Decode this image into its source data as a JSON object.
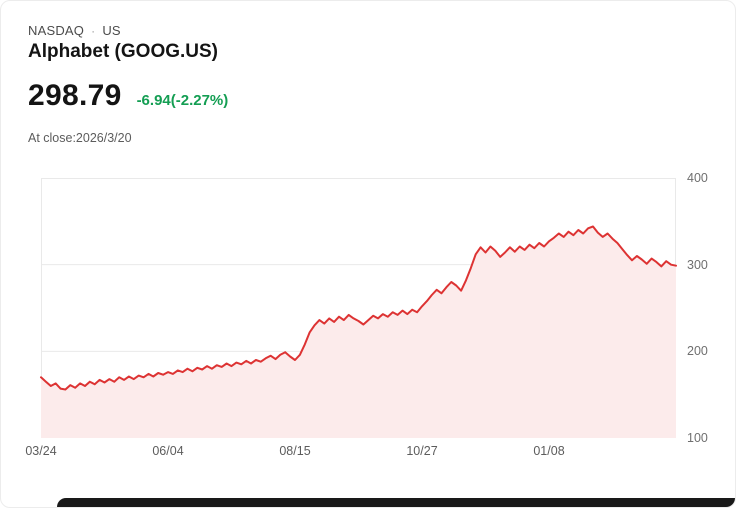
{
  "header": {
    "exchange": "NASDAQ",
    "separator": "·",
    "region": "US",
    "name": "Alphabet (GOOG.US)",
    "price": "298.79",
    "change": "-6.94(-2.27%)",
    "close_note": "At close:2026/3/20"
  },
  "colors": {
    "line": "#dd3333",
    "area": "#fcebeb",
    "change_green": "#149e53",
    "grid": "#e9e9e9",
    "axis_text": "#6f6f6f"
  },
  "chart_data": {
    "type": "line",
    "title": "Alphabet (GOOG.US) share price",
    "xlabel": "",
    "ylabel": "",
    "ylim": [
      100,
      400
    ],
    "y_ticks": [
      400,
      300,
      200,
      100
    ],
    "x_tick_labels": [
      "03/24",
      "06/04",
      "08/15",
      "10/27",
      "01/08"
    ],
    "x_tick_indices": [
      0,
      26,
      52,
      78,
      104
    ],
    "grid": true,
    "legend": false,
    "values": [
      170,
      165,
      160,
      163,
      157,
      156,
      161,
      158,
      163,
      160,
      165,
      162,
      167,
      164,
      168,
      165,
      170,
      167,
      171,
      168,
      172,
      170,
      174,
      171,
      175,
      173,
      176,
      174,
      178,
      176,
      180,
      177,
      181,
      179,
      183,
      180,
      184,
      182,
      186,
      183,
      187,
      185,
      189,
      186,
      190,
      188,
      192,
      195,
      191,
      196,
      199,
      194,
      190,
      196,
      208,
      222,
      230,
      236,
      232,
      238,
      234,
      240,
      236,
      242,
      238,
      235,
      231,
      236,
      241,
      238,
      243,
      240,
      245,
      242,
      247,
      243,
      248,
      245,
      252,
      258,
      265,
      271,
      267,
      274,
      280,
      276,
      270,
      282,
      296,
      312,
      320,
      314,
      321,
      316,
      309,
      314,
      320,
      315,
      321,
      317,
      323,
      319,
      325,
      321,
      327,
      331,
      336,
      332,
      338,
      334,
      340,
      336,
      342,
      344,
      337,
      332,
      336,
      330,
      325,
      318,
      311,
      305,
      310,
      306,
      301,
      307,
      303,
      298,
      304,
      300,
      298.79
    ]
  }
}
